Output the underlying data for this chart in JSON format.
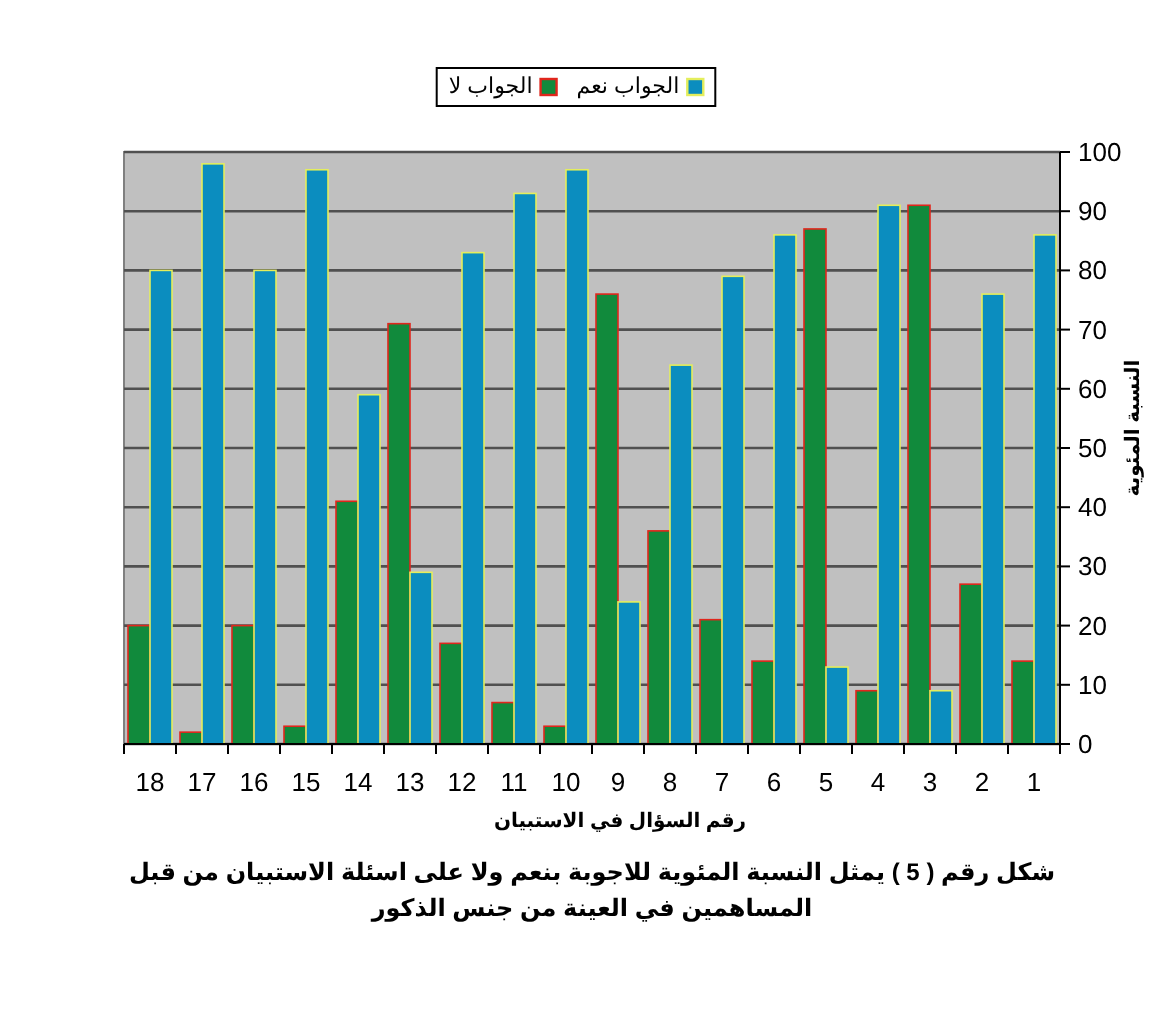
{
  "chart_data": {
    "type": "bar",
    "categories": [
      "18",
      "17",
      "16",
      "15",
      "14",
      "13",
      "12",
      "11",
      "10",
      "9",
      "8",
      "7",
      "6",
      "5",
      "4",
      "3",
      "2",
      "1"
    ],
    "series": [
      {
        "name": "الجواب لا",
        "color": "#118a3c",
        "values": [
          20,
          2,
          20,
          3,
          41,
          71,
          17,
          7,
          3,
          76,
          36,
          21,
          14,
          87,
          9,
          91,
          27,
          14
        ]
      },
      {
        "name": "الجواب نعم",
        "color": "#0b8dbf",
        "values": [
          80,
          98,
          80,
          97,
          59,
          29,
          83,
          93,
          97,
          24,
          64,
          79,
          86,
          13,
          91,
          9,
          76,
          86
        ]
      }
    ],
    "ylim": [
      0,
      100
    ],
    "yticks": [
      0,
      10,
      20,
      30,
      40,
      50,
      60,
      70,
      80,
      90,
      100
    ],
    "xlabel": "رقم السؤال في الاستبيان",
    "ylabel": "النسبة المئوية",
    "annotations": [
      "شكل رقم ( 5 ) يمثل النسبة المئوية للاجوبة بنعم ولا على اسئلة الاستبيان من قبل المساهمين في العينة من جنس الذكور"
    ],
    "grid": "y",
    "legend": "top"
  }
}
